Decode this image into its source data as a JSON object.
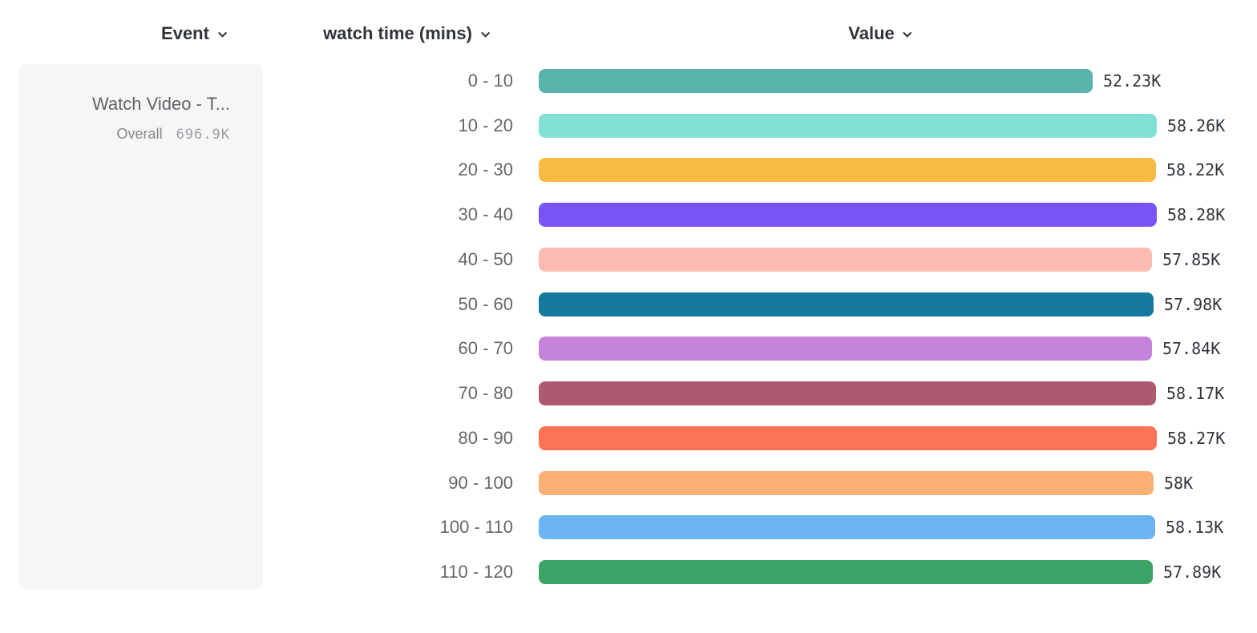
{
  "header": {
    "event_label": "Event",
    "breakdown_label": "watch time (mins)",
    "value_label": "Value"
  },
  "icons": {
    "dropdown": "chevron-down"
  },
  "event_card": {
    "event_name": "Watch Video - T...",
    "overall_label": "Overall",
    "overall_value": "696.9K"
  },
  "chart_data": {
    "type": "bar",
    "orientation": "horizontal",
    "title": "",
    "xlabel": "Value",
    "ylabel": "watch time (mins)",
    "xlim": [
      0,
      58.28
    ],
    "grid": false,
    "legend": false,
    "categories": [
      "0 - 10",
      "10 - 20",
      "20 - 30",
      "30 - 40",
      "40 - 50",
      "50 - 60",
      "60 - 70",
      "70 - 80",
      "80 - 90",
      "90 - 100",
      "100 - 110",
      "110 - 120"
    ],
    "values": [
      52.23,
      58.26,
      58.22,
      58.28,
      57.85,
      57.98,
      57.84,
      58.17,
      58.27,
      58.0,
      58.13,
      57.89
    ],
    "value_labels": [
      "52.23K",
      "58.26K",
      "58.22K",
      "58.28K",
      "57.85K",
      "57.98K",
      "57.84K",
      "58.17K",
      "58.27K",
      "58K",
      "58.13K",
      "57.89K"
    ],
    "unit": "K",
    "bar_colors": [
      "#59b5ac",
      "#81e1d5",
      "#f6bb42",
      "#7754f8",
      "#fdbcb2",
      "#14799c",
      "#c583dc",
      "#ac5a70",
      "#fd7356",
      "#fbaf73",
      "#6db5f2",
      "#3ba365"
    ]
  },
  "colors": {
    "header_text": "#2f3438",
    "category_text": "#63676c",
    "value_text": "#32373c",
    "card_bg": "#f6f6f7",
    "event_name_text": "#5f6468",
    "overall_label_text": "#83878c",
    "overall_value_text": "#9b9fa4"
  }
}
